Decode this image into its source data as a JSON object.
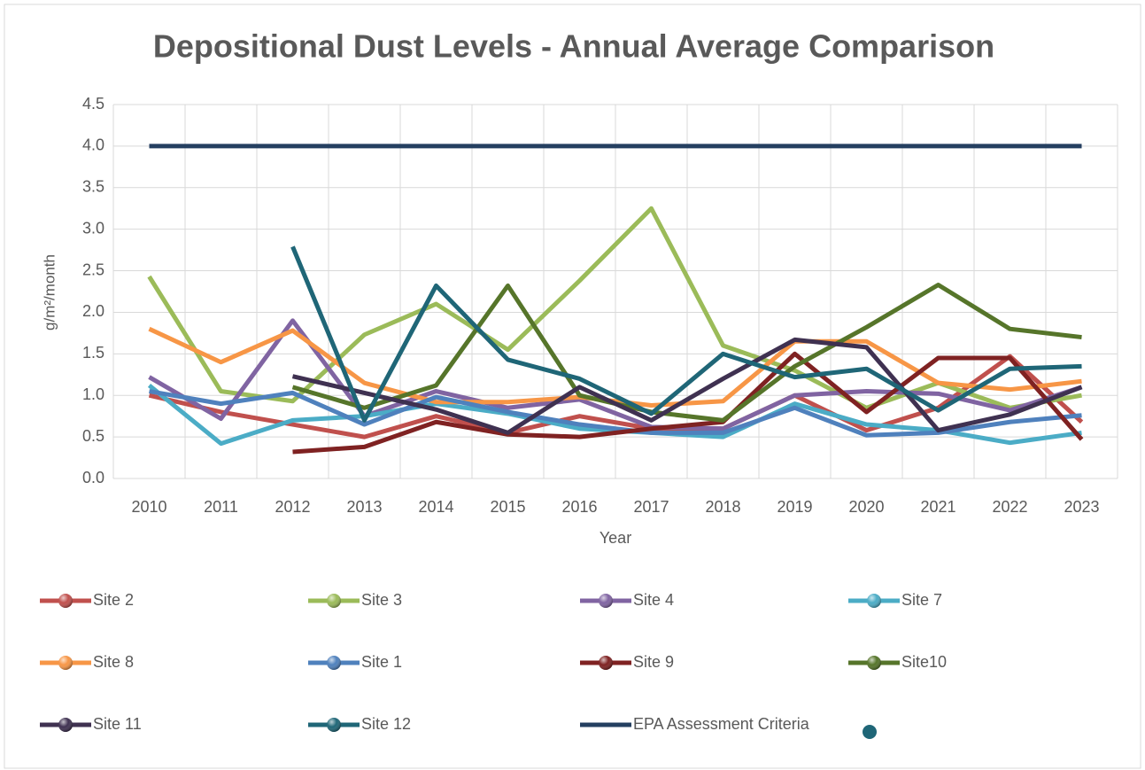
{
  "chart_data": {
    "type": "line",
    "title": "Depositional Dust Levels - Annual Average Comparison",
    "x_label": "Year",
    "y_label": "g/m²/month",
    "categories": [
      "2010",
      "2011",
      "2012",
      "2013",
      "2014",
      "2015",
      "2016",
      "2017",
      "2018",
      "2019",
      "2020",
      "2021",
      "2022",
      "2023"
    ],
    "ylim": [
      0,
      4.5
    ],
    "yticks": [
      {
        "value": 0,
        "label": "0.0"
      },
      {
        "value": 0.5,
        "label": "0.5"
      },
      {
        "value": 1,
        "label": "1.0"
      },
      {
        "value": 1.5,
        "label": "1.5"
      },
      {
        "value": 2,
        "label": "2.0"
      },
      {
        "value": 2.5,
        "label": "2.5"
      },
      {
        "value": 3,
        "label": "3.0"
      },
      {
        "value": 3.5,
        "label": "3.5"
      },
      {
        "value": 4,
        "label": "4.0"
      },
      {
        "value": 4.5,
        "label": "4.5"
      }
    ],
    "grid": true,
    "legend": "bottom",
    "series": [
      {
        "name": "Site 2",
        "color": "#c0504d",
        "values": [
          1.0,
          0.8,
          0.65,
          0.5,
          0.75,
          0.55,
          0.75,
          0.6,
          0.6,
          1.0,
          0.58,
          0.85,
          1.47,
          0.68
        ]
      },
      {
        "name": "Site 3",
        "color": "#9bbb59",
        "values": [
          2.43,
          1.05,
          0.93,
          1.73,
          2.1,
          1.55,
          2.38,
          3.25,
          1.6,
          1.3,
          0.85,
          1.15,
          0.85,
          1.0
        ]
      },
      {
        "name": "Site 4",
        "color": "#8064a2",
        "values": [
          1.22,
          0.72,
          1.9,
          0.75,
          1.05,
          0.85,
          0.95,
          0.62,
          0.6,
          1.0,
          1.05,
          1.02,
          0.82,
          1.1
        ]
      },
      {
        "name": "Site 7",
        "color": "#4bacc6",
        "values": [
          1.12,
          0.42,
          0.7,
          0.75,
          0.9,
          0.78,
          0.6,
          0.55,
          0.5,
          0.9,
          0.65,
          0.58,
          0.43,
          0.55
        ]
      },
      {
        "name": "Site 8",
        "color": "#f79646",
        "values": [
          1.8,
          1.4,
          1.78,
          1.15,
          0.92,
          0.92,
          0.98,
          0.88,
          0.93,
          1.65,
          1.65,
          1.15,
          1.07,
          1.17
        ]
      },
      {
        "name": "Site 1",
        "color": "#4f81bd",
        "values": [
          1.05,
          0.9,
          1.03,
          0.65,
          0.98,
          0.8,
          0.65,
          0.55,
          0.55,
          0.85,
          0.52,
          0.55,
          0.68,
          0.76
        ]
      },
      {
        "name": "Site 9",
        "color": "#7f2222",
        "values": [
          null,
          null,
          0.32,
          0.38,
          0.68,
          0.53,
          0.5,
          0.6,
          0.68,
          1.5,
          0.8,
          1.45,
          1.45,
          0.47
        ]
      },
      {
        "name": "Site10",
        "color": "#56752a",
        "values": [
          null,
          null,
          1.1,
          0.85,
          1.12,
          2.32,
          1.0,
          0.8,
          0.7,
          1.35,
          1.82,
          2.33,
          1.8,
          1.7
        ]
      },
      {
        "name": "Site 11",
        "color": "#3f3151",
        "values": [
          null,
          null,
          1.23,
          1.03,
          0.83,
          0.55,
          1.1,
          0.7,
          1.2,
          1.67,
          1.58,
          0.58,
          0.77,
          1.1
        ]
      },
      {
        "name": "Site 12",
        "color": "#1f6677",
        "values": [
          null,
          null,
          2.79,
          0.7,
          2.32,
          1.43,
          1.2,
          0.78,
          1.5,
          1.22,
          1.32,
          0.82,
          1.32,
          1.35
        ]
      },
      {
        "name": "EPA Assessment Criteria",
        "color": "#243f60",
        "values": [
          4,
          4,
          4,
          4,
          4,
          4,
          4,
          4,
          4,
          4,
          4,
          4,
          4,
          4
        ]
      }
    ]
  }
}
